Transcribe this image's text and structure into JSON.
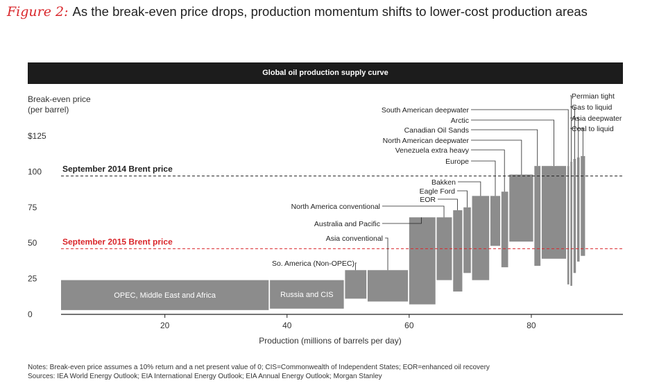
{
  "figure": {
    "label": "Figure 2:",
    "title": "As the break-even price drops, production momentum shifts to lower-cost production areas"
  },
  "colors": {
    "bar": "#8c8c8c",
    "ref2015": "#d9262b",
    "ref2014": "#222222",
    "banner": "#1c1c1c"
  },
  "chart_data": {
    "type": "bar",
    "title": "Global oil production supply curve",
    "ylabel": [
      "Break-even price",
      "(per barrel)"
    ],
    "xlabel": "Production (millions of barrels per day)",
    "xlim": [
      3,
      95
    ],
    "ylim": [
      0,
      125
    ],
    "x_ticks": [
      20,
      40,
      60,
      80
    ],
    "y_ticks": [
      {
        "value": 0,
        "label": "0"
      },
      {
        "value": 25,
        "label": "25"
      },
      {
        "value": 50,
        "label": "50"
      },
      {
        "value": 75,
        "label": "75"
      },
      {
        "value": 100,
        "label": "100"
      },
      {
        "value": 125,
        "label": "$125"
      }
    ],
    "reference_lines": [
      {
        "name": "September 2014 Brent price",
        "value": 97,
        "color": "#222222"
      },
      {
        "name": "September 2015 Brent price",
        "value": 46,
        "color": "#d9262b"
      }
    ],
    "segments": [
      {
        "name": "OPEC, Middle East and Africa",
        "x0": 3,
        "x1": 37,
        "low": 3,
        "high": 24,
        "label": "inside"
      },
      {
        "name": "Russia and CIS",
        "x0": 37.2,
        "x1": 49.3,
        "low": 4,
        "high": 24,
        "label": "inside"
      },
      {
        "name": "So. America (Non-OPEC)",
        "x0": 49.5,
        "x1": 53,
        "low": 11,
        "high": 31
      },
      {
        "name": "Asia conventional",
        "x0": 53.2,
        "x1": 59.8,
        "low": 9,
        "high": 31
      },
      {
        "name": "Australia and Pacific",
        "x0": 60,
        "x1": 64.3,
        "low": 7,
        "high": 68
      },
      {
        "name": "North America conventional",
        "x0": 64.5,
        "x1": 67,
        "low": 24,
        "high": 68
      },
      {
        "name": "EOR",
        "x0": 67.2,
        "x1": 68.7,
        "low": 16,
        "high": 73
      },
      {
        "name": "Eagle Ford",
        "x0": 68.9,
        "x1": 70.1,
        "low": 29,
        "high": 75
      },
      {
        "name": "Bakken",
        "x0": 70.3,
        "x1": 73.1,
        "low": 24,
        "high": 83
      },
      {
        "name": "Europe",
        "x0": 73.3,
        "x1": 74.9,
        "low": 48,
        "high": 83
      },
      {
        "name": "Venezuela extra heavy",
        "x0": 75.1,
        "x1": 76.2,
        "low": 33,
        "high": 86
      },
      {
        "name": "North American deepwater",
        "x0": 76.4,
        "x1": 80.3,
        "low": 51,
        "high": 98
      },
      {
        "name": "Canadian Oil Sands",
        "x0": 80.5,
        "x1": 81.5,
        "low": 34,
        "high": 104
      },
      {
        "name": "Arctic",
        "x0": 81.7,
        "x1": 85.7,
        "low": 39,
        "high": 104
      },
      {
        "name": "South American deepwater",
        "x0": 85.9,
        "x1": 86.2,
        "low": 21,
        "high": 104
      },
      {
        "name": "Permian tight",
        "x0": 86.4,
        "x1": 86.7,
        "low": 20,
        "high": 107
      },
      {
        "name": "Gas to liquid",
        "x0": 86.9,
        "x1": 87.3,
        "low": 29,
        "high": 109
      },
      {
        "name": "Asia deepwater",
        "x0": 87.5,
        "x1": 87.9,
        "low": 37,
        "high": 110
      },
      {
        "name": "Coal to liquid",
        "x0": 88.1,
        "x1": 88.8,
        "low": 41,
        "high": 111
      }
    ]
  },
  "notes": [
    "Notes: Break-even price assumes a 10% return and a net present value of 0; CIS=Commonwealth of Independent States; EOR=enhanced oil recovery",
    "Sources: IEA World Energy Outlook; EIA International Energy Outlook; EIA Annual Energy Outlook; Morgan Stanley"
  ]
}
